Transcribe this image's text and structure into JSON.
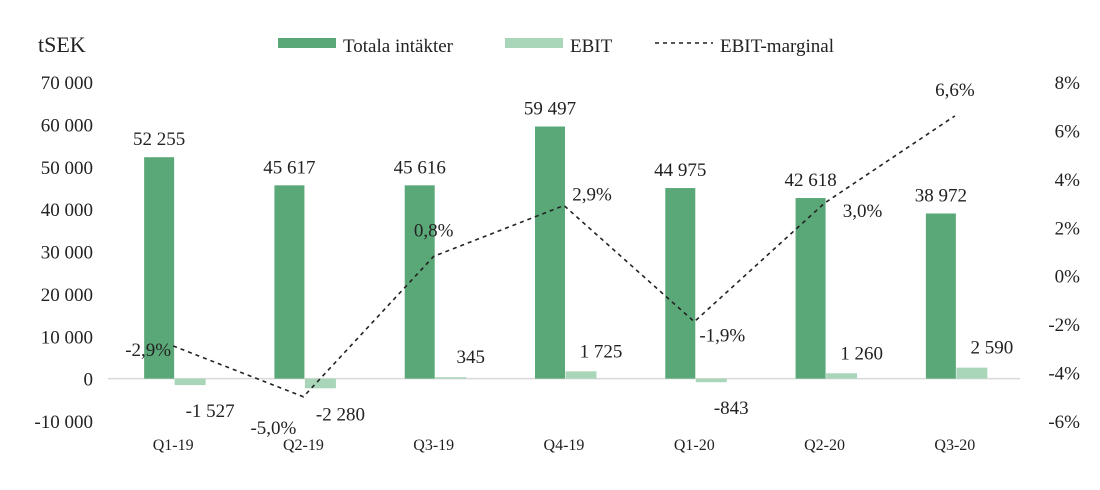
{
  "chart_data": {
    "type": "bar",
    "y_unit_label": "tSEK",
    "categories": [
      "Q1-19",
      "Q2-19",
      "Q3-19",
      "Q4-19",
      "Q1-20",
      "Q2-20",
      "Q3-20"
    ],
    "series": [
      {
        "name": "Totala intäkter",
        "type": "bar",
        "axis": "left",
        "color": "#5aa878",
        "values": [
          52255,
          45617,
          45616,
          59497,
          44975,
          42618,
          38972
        ],
        "labels": [
          "52 255",
          "45 617",
          "45 616",
          "59 497",
          "44 975",
          "42 618",
          "38 972"
        ]
      },
      {
        "name": "EBIT",
        "type": "bar",
        "axis": "left",
        "color": "#a9d5b8",
        "values": [
          -1527,
          -2280,
          345,
          1725,
          -843,
          1260,
          2590
        ],
        "labels": [
          "-1 527",
          "-2 280",
          "345",
          "1 725",
          "-843",
          "1 260",
          "2 590"
        ]
      },
      {
        "name": "EBIT-marginal",
        "type": "line",
        "style": "dashed",
        "axis": "right",
        "color": "#222222",
        "values": [
          -2.9,
          -5.0,
          0.8,
          2.9,
          -1.9,
          3.0,
          6.6
        ],
        "labels": [
          "-2,9%",
          "-5,0%",
          "0,8%",
          "2,9%",
          "-1,9%",
          "3,0%",
          "6,6%"
        ]
      }
    ],
    "left_axis": {
      "ylim": [
        -10000,
        70000
      ],
      "ticks": [
        -10000,
        0,
        10000,
        20000,
        30000,
        40000,
        50000,
        60000,
        70000
      ],
      "tick_labels": [
        "-10 000",
        "0",
        "10 000",
        "20 000",
        "30 000",
        "40 000",
        "50 000",
        "60 000",
        "70 000"
      ]
    },
    "right_axis": {
      "ylim": [
        -6,
        8
      ],
      "ticks": [
        -6,
        -4,
        -2,
        0,
        2,
        4,
        6,
        8
      ],
      "tick_labels": [
        "-6%",
        "-4%",
        "-2%",
        "0%",
        "2%",
        "4%",
        "6%",
        "8%"
      ]
    },
    "legend_position": "top",
    "grid": false
  }
}
